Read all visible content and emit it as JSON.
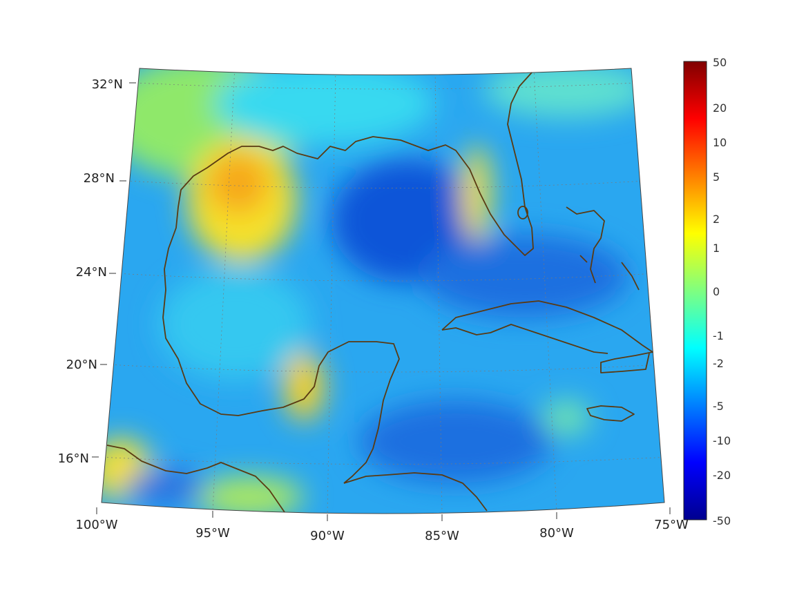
{
  "map": {
    "projection": "lambert-conic",
    "lon_range": [
      -100,
      -75
    ],
    "lat_range": [
      14,
      33
    ],
    "grid": true,
    "lon_ticks": [
      {
        "value": -100,
        "label": "100°W"
      },
      {
        "value": -95,
        "label": "95°W"
      },
      {
        "value": -90,
        "label": "90°W"
      },
      {
        "value": -85,
        "label": "85°W"
      },
      {
        "value": -80,
        "label": "80°W"
      },
      {
        "value": -75,
        "label": "75°W"
      }
    ],
    "lat_ticks": [
      {
        "value": 32,
        "label": "32°N"
      },
      {
        "value": 28,
        "label": "28°N"
      },
      {
        "value": 24,
        "label": "24°N"
      },
      {
        "value": 20,
        "label": "20°N"
      },
      {
        "value": 16,
        "label": "16°N"
      }
    ],
    "coastline_color": "#5a3a12",
    "background_field_color": "#2aa7f0"
  },
  "colorbar": {
    "colormap": "jet",
    "position": "right",
    "tick_labels": [
      "50",
      "20",
      "10",
      "5",
      "2",
      "1",
      "0",
      "-1",
      "-2",
      "-5",
      "-10",
      "-20",
      "-50"
    ]
  }
}
